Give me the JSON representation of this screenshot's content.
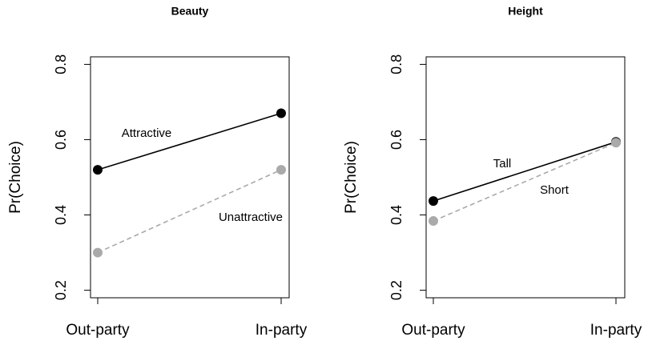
{
  "chart_data": [
    {
      "type": "line",
      "title": "Beauty",
      "y_label": "Pr(Choice)",
      "categories": [
        "Out-party",
        "In-party"
      ],
      "series": [
        {
          "name": "Attractive",
          "color": "#000000",
          "line_style": "solid",
          "values": [
            0.52,
            0.67
          ]
        },
        {
          "name": "Unattractive",
          "color": "#aaaaaa",
          "line_style": "dashed",
          "values": [
            0.3,
            0.52
          ]
        }
      ],
      "ylim": [
        0.18,
        0.82
      ],
      "yticks": [
        0.2,
        0.4,
        0.6,
        0.8
      ]
    },
    {
      "type": "line",
      "title": "Height",
      "y_label": "Pr(Choice)",
      "categories": [
        "Out-party",
        "In-party"
      ],
      "series": [
        {
          "name": "Tall",
          "color": "#000000",
          "line_style": "solid",
          "values": [
            0.437,
            0.594
          ]
        },
        {
          "name": "Short",
          "color": "#aaaaaa",
          "line_style": "dashed",
          "values": [
            0.384,
            0.592
          ]
        }
      ],
      "ylim": [
        0.18,
        0.82
      ],
      "yticks": [
        0.2,
        0.4,
        0.6,
        0.8
      ]
    }
  ]
}
